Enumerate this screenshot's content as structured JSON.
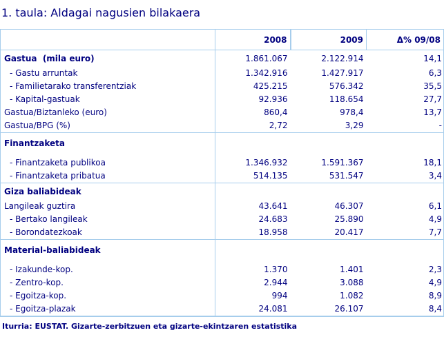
{
  "title": "1. taula: Aldagai nagusien bilakaera",
  "table": {
    "headers": [
      "",
      "2008",
      "2009",
      "Δ% 09/08"
    ],
    "sections": [
      {
        "label": "Gastua  (mila euro)",
        "values": [
          "1.861.067",
          "2.122.914",
          "14,1"
        ],
        "rows": [
          {
            "label": "- Gastu arruntak",
            "indent": true,
            "values": [
              "1.342.916",
              "1.427.917",
              "6,3"
            ]
          },
          {
            "label": "- Familietarako transferentziak",
            "indent": true,
            "values": [
              "425.215",
              "576.342",
              "35,5"
            ]
          },
          {
            "label": "- Kapital-gastuak",
            "indent": true,
            "values": [
              "92.936",
              "118.654",
              "27,7"
            ]
          },
          {
            "label": "Gastua/Biztanleko (euro)",
            "indent": false,
            "values": [
              "860,4",
              "978,4",
              "13,7"
            ]
          },
          {
            "label": "Gastua/BPG (%)",
            "indent": false,
            "values": [
              "2,72",
              "3,29",
              "-"
            ]
          }
        ]
      },
      {
        "label": "Finantzaketa",
        "values": [
          "",
          "",
          ""
        ],
        "rows": [
          {
            "label": "- Finantzaketa publikoa",
            "indent": true,
            "values": [
              "1.346.932",
              "1.591.367",
              "18,1"
            ]
          },
          {
            "label": "- Finantzaketa pribatua",
            "indent": true,
            "values": [
              "514.135",
              "531.547",
              "3,4"
            ]
          }
        ]
      },
      {
        "label": "Giza baliabideak",
        "values": [
          "",
          "",
          ""
        ],
        "rows": [
          {
            "label": "Langileak guztira",
            "indent": false,
            "values": [
              "43.641",
              "46.307",
              "6,1"
            ]
          },
          {
            "label": "- Bertako langileak",
            "indent": true,
            "values": [
              "24.683",
              "25.890",
              "4,9"
            ]
          },
          {
            "label": "- Borondatezkoak",
            "indent": true,
            "values": [
              "18.958",
              "20.417",
              "7,7"
            ]
          }
        ]
      },
      {
        "label": "Material-baliabideak",
        "values": [
          "",
          "",
          ""
        ],
        "rows": [
          {
            "label": "- Izakunde-kop.",
            "indent": true,
            "values": [
              "1.370",
              "1.401",
              "2,3"
            ]
          },
          {
            "label": "- Zentro-kop.",
            "indent": true,
            "values": [
              "2.944",
              "3.088",
              "4,9"
            ]
          },
          {
            "label": "- Egoitza-kop.",
            "indent": true,
            "values": [
              "994",
              "1.082",
              "8,9"
            ]
          },
          {
            "label": "- Egoitza-plazak",
            "indent": true,
            "values": [
              "24.081",
              "26.107",
              "8,4"
            ]
          }
        ]
      }
    ]
  },
  "footnote": "Iturria: EUSTAT. Gizarte-zerbitzuen eta gizarte-ekintzaren estatistika",
  "colors": {
    "text": "#000080",
    "border": "#a6cdec"
  }
}
